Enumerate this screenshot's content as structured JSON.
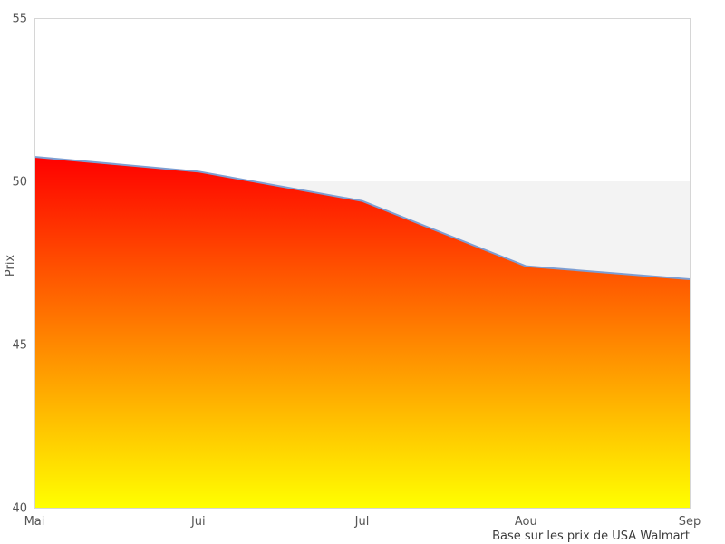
{
  "figure": {
    "ylabel": "Prix",
    "caption": "Base sur les prix de USA Walmart"
  },
  "chart_data": {
    "type": "area",
    "categories": [
      "Mai",
      "Jui",
      "Jul",
      "Aou",
      "Sep"
    ],
    "series": [
      {
        "name": "Prix",
        "values": [
          50.75,
          50.3,
          49.4,
          47.4,
          47.0
        ]
      }
    ],
    "reference_level": 50,
    "title": "",
    "xlabel": "",
    "ylabel": "Prix",
    "ylim": [
      40,
      55
    ],
    "yticks": [
      55,
      50,
      45,
      40
    ],
    "grid": false,
    "legend": false,
    "caption": "Base sur les prix de USA Walmart",
    "colors": {
      "line": "#7d9ed3",
      "gradient_top": "#ff0000",
      "gradient_bottom": "#ffff00",
      "reference_band": "#f3f3f3",
      "plot_border": "#d6d6d6",
      "tick_label": "#555555",
      "caption_text": "#3a3a3a"
    }
  }
}
